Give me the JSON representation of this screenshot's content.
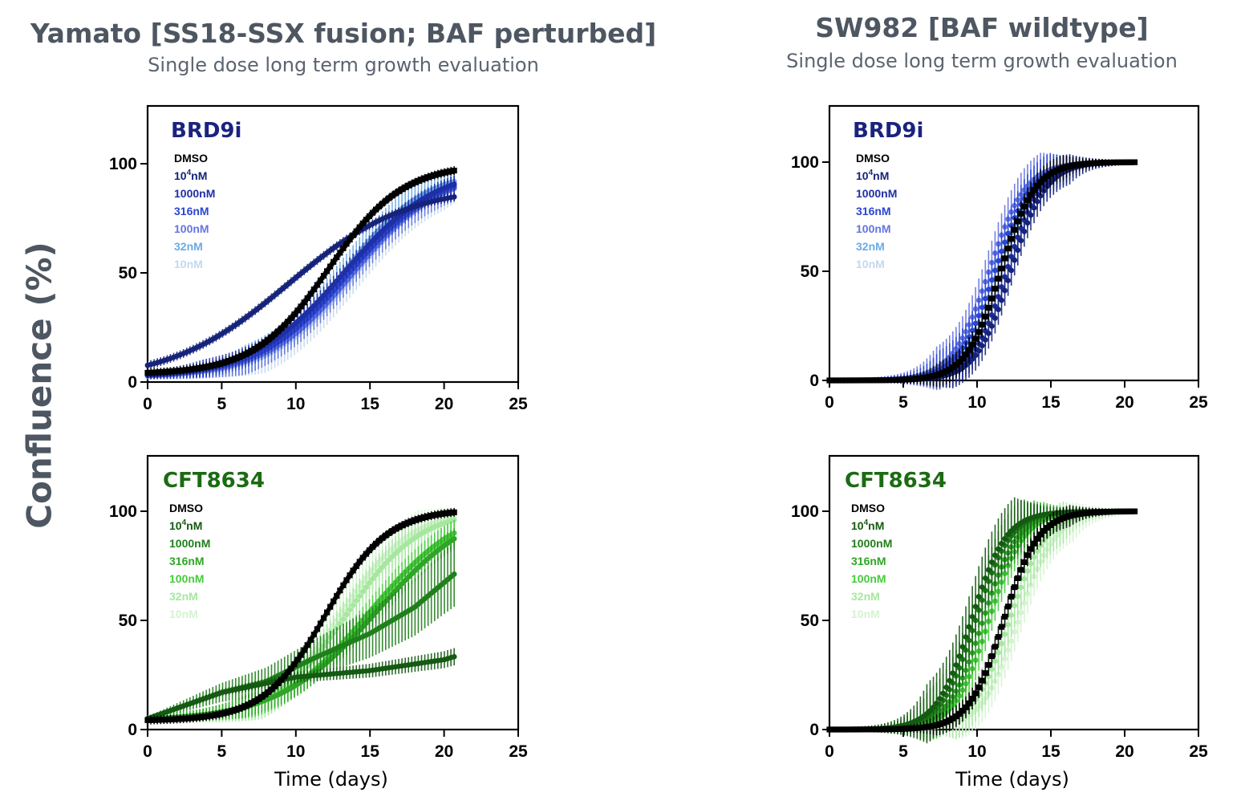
{
  "figure": {
    "left_title": "Yamato [SS18-SSX fusion; BAF perturbed]",
    "left_subtitle": "Single dose long term growth evaluation",
    "right_title": "SW982 [BAF wildtype]",
    "right_subtitle": "Single dose long term growth evaluation",
    "ylabel": "Confluence (%)",
    "xlabel": "Time (days)"
  },
  "colors": {
    "title": "#4d5661",
    "brd9_label": "#1a237e",
    "cft_label": "#1b6b12"
  },
  "chart_data": [
    {
      "type": "line",
      "id": "yamato-brd9",
      "panel_label": "BRD9i",
      "xlabel": "",
      "ylabel": "Confluence (%)",
      "xlim": [
        0,
        25
      ],
      "ylim": [
        0,
        125
      ],
      "xticks": [
        0,
        5,
        10,
        15,
        20,
        25
      ],
      "yticks": [
        0,
        50,
        100
      ],
      "grid": false,
      "series": [
        {
          "name": "DMSO",
          "label": "DMSO",
          "sup": "",
          "color": "#000000",
          "model": {
            "k": 0.4,
            "x0": 12.2,
            "ymin": 3.5,
            "ymax": 100,
            "err": 2
          }
        },
        {
          "name": "10^4nM",
          "label": "10",
          "sup": "4",
          "label_suffix": "nM",
          "color": "#16237a",
          "model": {
            "k": 0.25,
            "x0": 9.5,
            "ymin": 0,
            "ymax": 90,
            "err": 2
          }
        },
        {
          "name": "1000nM",
          "label": "1000nM",
          "sup": "",
          "color": "#1f2fa5",
          "model": {
            "k": 0.32,
            "x0": 13.3,
            "ymin": 2,
            "ymax": 99,
            "err": 4
          }
        },
        {
          "name": "316nM",
          "label": "316nM",
          "sup": "",
          "color": "#2a46d2",
          "model": {
            "k": 0.33,
            "x0": 13.6,
            "ymin": 2,
            "ymax": 98,
            "err": 4
          }
        },
        {
          "name": "100nM",
          "label": "100nM",
          "sup": "",
          "color": "#6674e0",
          "model": {
            "k": 0.34,
            "x0": 13.8,
            "ymin": 2,
            "ymax": 97,
            "err": 6
          }
        },
        {
          "name": "32nM",
          "label": "32nM",
          "sup": "",
          "color": "#6aaae6",
          "model": {
            "k": 0.36,
            "x0": 13.2,
            "ymin": 2,
            "ymax": 98,
            "err": 7
          }
        },
        {
          "name": "10nM",
          "label": "10nM",
          "sup": "",
          "color": "#c3d9ee",
          "model": {
            "k": 0.35,
            "x0": 14.0,
            "ymin": 2,
            "ymax": 97,
            "err": 8
          }
        }
      ]
    },
    {
      "type": "line",
      "id": "sw982-brd9",
      "panel_label": "BRD9i",
      "xlabel": "",
      "ylabel": "Confluence (%)",
      "xlim": [
        0,
        25
      ],
      "ylim": [
        0,
        125
      ],
      "xticks": [
        0,
        5,
        10,
        15,
        20,
        25
      ],
      "yticks": [
        0,
        50,
        100
      ],
      "grid": false,
      "series": [
        {
          "name": "DMSO",
          "label": "DMSO",
          "sup": "",
          "color": "#000000",
          "model": {
            "k": 0.85,
            "x0": 11.6,
            "ymin": 0,
            "ymax": 100,
            "err": 6
          }
        },
        {
          "name": "10^4nM",
          "label": "10",
          "sup": "4",
          "label_suffix": "nM",
          "color": "#16237a",
          "model": {
            "k": 0.85,
            "x0": 12.3,
            "ymin": 0,
            "ymax": 100,
            "err": 7
          }
        },
        {
          "name": "1000nM",
          "label": "1000nM",
          "sup": "",
          "color": "#1f2fa5",
          "model": {
            "k": 0.85,
            "x0": 12.0,
            "ymin": 0,
            "ymax": 100,
            "err": 7
          }
        },
        {
          "name": "316nM",
          "label": "316nM",
          "sup": "",
          "color": "#2a46d2",
          "model": {
            "k": 0.8,
            "x0": 11.2,
            "ymin": 0,
            "ymax": 100,
            "err": 9
          }
        },
        {
          "name": "100nM",
          "label": "100nM",
          "sup": "",
          "color": "#6674e0",
          "model": {
            "k": 0.8,
            "x0": 10.8,
            "ymin": 0,
            "ymax": 100,
            "err": 10
          }
        },
        {
          "name": "32nM",
          "label": "32nM",
          "sup": "",
          "color": "#6aaae6",
          "model": {
            "k": 0.8,
            "x0": 11.4,
            "ymin": 0,
            "ymax": 100,
            "err": 8
          }
        },
        {
          "name": "10nM",
          "label": "10nM",
          "sup": "",
          "color": "#c3d9ee",
          "model": {
            "k": 0.8,
            "x0": 11.8,
            "ymin": 0,
            "ymax": 100,
            "err": 6
          }
        }
      ]
    },
    {
      "type": "line",
      "id": "yamato-cft8634",
      "panel_label": "CFT8634",
      "xlabel": "Time (days)",
      "ylabel": "Confluence (%)",
      "xlim": [
        0,
        25
      ],
      "ylim": [
        0,
        125
      ],
      "xticks": [
        0,
        5,
        10,
        15,
        20,
        25
      ],
      "yticks": [
        0,
        50,
        100
      ],
      "grid": false,
      "series": [
        {
          "name": "DMSO",
          "label": "DMSO",
          "sup": "",
          "color": "#000000",
          "model": {
            "k": 0.48,
            "x0": 12.0,
            "ymin": 4,
            "ymax": 101,
            "err": 2
          }
        },
        {
          "name": "10^4nM",
          "label": "10",
          "sup": "4",
          "label_suffix": "nM",
          "color": "#145a12",
          "linear": [
            [
              0,
              5
            ],
            [
              5,
              17
            ],
            [
              10,
              24
            ],
            [
              15,
              27
            ],
            [
              20,
              32
            ],
            [
              21,
              34
            ]
          ],
          "err": 3
        },
        {
          "name": "1000nM",
          "label": "1000nM",
          "sup": "",
          "color": "#1f7f1a",
          "linear": [
            [
              0,
              5
            ],
            [
              5,
              17
            ],
            [
              8,
              22
            ],
            [
              11,
              32
            ],
            [
              15,
              44
            ],
            [
              18,
              56
            ],
            [
              21,
              73
            ]
          ],
          "err": 14
        },
        {
          "name": "316nM",
          "label": "316nM",
          "sup": "",
          "color": "#2fa527",
          "model": {
            "k": 0.3,
            "x0": 15.5,
            "ymin": 4,
            "ymax": 105,
            "err": 5
          }
        },
        {
          "name": "100nM",
          "label": "100nM",
          "sup": "",
          "color": "#44cc3a",
          "model": {
            "k": 0.32,
            "x0": 15.0,
            "ymin": 4,
            "ymax": 104,
            "err": 6
          }
        },
        {
          "name": "32nM",
          "label": "32nM",
          "sup": "",
          "color": "#a6e7a0",
          "model": {
            "k": 0.4,
            "x0": 13.4,
            "ymin": 4,
            "ymax": 101,
            "err": 8
          }
        },
        {
          "name": "10nM",
          "label": "10nM",
          "sup": "",
          "color": "#d4f3d0",
          "model": {
            "k": 0.42,
            "x0": 13.0,
            "ymin": 4,
            "ymax": 101,
            "err": 9
          }
        }
      ]
    },
    {
      "type": "line",
      "id": "sw982-cft8634",
      "panel_label": "CFT8634",
      "xlabel": "Time (days)",
      "ylabel": "Confluence (%)",
      "xlim": [
        0,
        25
      ],
      "ylim": [
        0,
        125
      ],
      "xticks": [
        0,
        5,
        10,
        15,
        20,
        25
      ],
      "yticks": [
        0,
        50,
        100
      ],
      "grid": false,
      "series": [
        {
          "name": "DMSO",
          "label": "DMSO",
          "sup": "",
          "color": "#000000",
          "model": {
            "k": 0.85,
            "x0": 11.8,
            "ymin": 0,
            "ymax": 100,
            "err": 5
          }
        },
        {
          "name": "10^4nM",
          "label": "10",
          "sup": "4",
          "label_suffix": "nM",
          "color": "#145a12",
          "model": {
            "k": 0.85,
            "x0": 9.6,
            "ymin": 0,
            "ymax": 100,
            "err": 14
          }
        },
        {
          "name": "1000nM",
          "label": "1000nM",
          "sup": "",
          "color": "#1f7f1a",
          "model": {
            "k": 0.85,
            "x0": 9.9,
            "ymin": 0,
            "ymax": 100,
            "err": 12
          }
        },
        {
          "name": "316nM",
          "label": "316nM",
          "sup": "",
          "color": "#2fa527",
          "model": {
            "k": 0.85,
            "x0": 10.4,
            "ymin": 0,
            "ymax": 100,
            "err": 10
          }
        },
        {
          "name": "100nM",
          "label": "100nM",
          "sup": "",
          "color": "#44cc3a",
          "model": {
            "k": 0.85,
            "x0": 10.8,
            "ymin": 0,
            "ymax": 100,
            "err": 9
          }
        },
        {
          "name": "32nM",
          "label": "32nM",
          "sup": "",
          "color": "#a6e7a0",
          "model": {
            "k": 0.8,
            "x0": 12.2,
            "ymin": 0,
            "ymax": 100,
            "err": 10
          }
        },
        {
          "name": "10nM",
          "label": "10nM",
          "sup": "",
          "color": "#d4f3d0",
          "model": {
            "k": 0.8,
            "x0": 12.8,
            "ymin": 0,
            "ymax": 100,
            "err": 9
          }
        }
      ]
    }
  ]
}
